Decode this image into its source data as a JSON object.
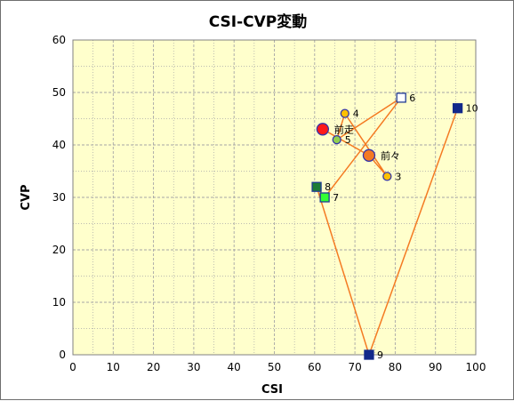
{
  "chart_data": {
    "type": "scatter",
    "title": "CSI-CVP変動",
    "xlabel": "CSI",
    "ylabel": "CVP",
    "xlim": [
      0,
      100
    ],
    "ylim": [
      0,
      60
    ],
    "x_ticks": [
      "0",
      "10",
      "20",
      "30",
      "40",
      "50",
      "60",
      "70",
      "80",
      "90",
      "100"
    ],
    "y_ticks": [
      "0",
      "10",
      "20",
      "30",
      "40",
      "50",
      "60"
    ],
    "grid": true,
    "plot_background": "#ffffcc",
    "grid_color": "#a6a6a6",
    "line_color": "#f47a22",
    "path_order": [
      "前走",
      "前々",
      "3",
      "4",
      "5",
      "6",
      "7",
      "8",
      "9",
      "10"
    ],
    "points": [
      {
        "label": "前走",
        "x": 62,
        "y": 43,
        "shape": "circle",
        "fill": "#ff1a1a",
        "stroke": "#3333aa",
        "size": "large"
      },
      {
        "label": "前々",
        "x": 73.5,
        "y": 38,
        "shape": "circle",
        "fill": "#f47a22",
        "stroke": "#3333aa",
        "size": "large"
      },
      {
        "label": "3",
        "x": 78,
        "y": 34,
        "shape": "circle",
        "fill": "#ffc000",
        "stroke": "#3333aa",
        "size": "small"
      },
      {
        "label": "4",
        "x": 67.5,
        "y": 46,
        "shape": "circle",
        "fill": "#ffc000",
        "stroke": "#3333aa",
        "size": "small"
      },
      {
        "label": "5",
        "x": 65.5,
        "y": 41,
        "shape": "circle",
        "fill": "#92d050",
        "stroke": "#3333aa",
        "size": "small"
      },
      {
        "label": "6",
        "x": 81.5,
        "y": 49,
        "shape": "square",
        "fill": "#ffffff",
        "stroke": "#1f3a93",
        "size": "medium"
      },
      {
        "label": "7",
        "x": 62.5,
        "y": 30,
        "shape": "square",
        "fill": "#33ff33",
        "stroke": "#1f3a93",
        "size": "medium"
      },
      {
        "label": "8",
        "x": 60.5,
        "y": 32,
        "shape": "square",
        "fill": "#1e7b34",
        "stroke": "#1f3a93",
        "size": "medium"
      },
      {
        "label": "9",
        "x": 73.5,
        "y": 0,
        "shape": "square",
        "fill": "#12288a",
        "stroke": "#12288a",
        "size": "medium"
      },
      {
        "label": "10",
        "x": 95.5,
        "y": 47,
        "shape": "square",
        "fill": "#12288a",
        "stroke": "#12288a",
        "size": "medium"
      }
    ]
  }
}
